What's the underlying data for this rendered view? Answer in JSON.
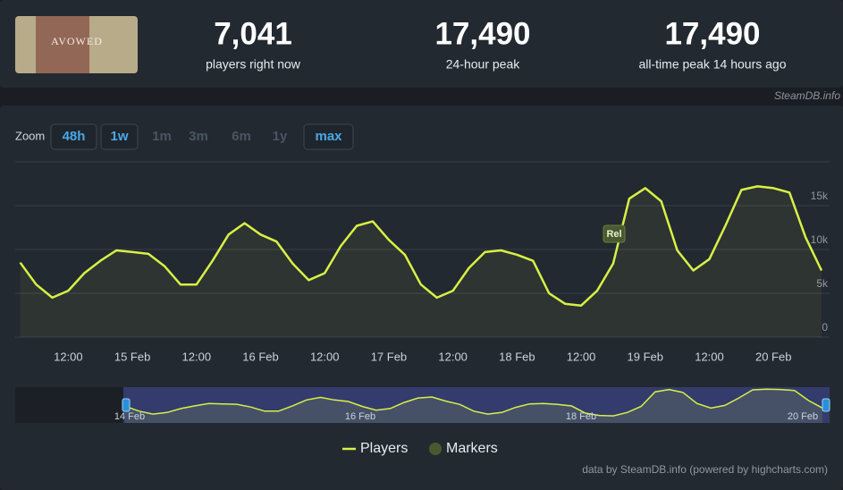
{
  "header": {
    "game_logo": "AVOWED",
    "stats": [
      {
        "value": "7,041",
        "label": "players right now"
      },
      {
        "value": "17,490",
        "label": "24-hour peak"
      },
      {
        "value": "17,490",
        "label": "all-time peak 14 hours ago"
      }
    ],
    "watermark": "SteamDB.info"
  },
  "zoom": {
    "label": "Zoom",
    "buttons": [
      "48h",
      "1w",
      "1m",
      "3m",
      "6m",
      "1y",
      "max"
    ],
    "enabled": [
      true,
      true,
      false,
      false,
      false,
      false,
      true
    ]
  },
  "chart_data": {
    "type": "line",
    "categories": [
      null,
      null,
      null,
      "12:00",
      null,
      null,
      null,
      "15 Feb",
      null,
      null,
      null,
      "12:00",
      null,
      null,
      null,
      "16 Feb",
      null,
      null,
      null,
      "12:00",
      null,
      null,
      null,
      "17 Feb",
      null,
      null,
      null,
      "12:00",
      null,
      null,
      null,
      "18 Feb",
      null,
      null,
      null,
      "12:00",
      null,
      null,
      null,
      "19 Feb",
      null,
      null,
      null,
      "12:00",
      null,
      null,
      null,
      "20 Feb",
      null,
      null,
      null
    ],
    "series": [
      {
        "name": "Players",
        "color": "#d8f046",
        "values": [
          8500,
          6000,
          4500,
          5300,
          7300,
          8700,
          9900,
          9700,
          9500,
          8100,
          6000,
          6000,
          8700,
          11700,
          13000,
          11700,
          10900,
          8400,
          6500,
          7300,
          10400,
          12700,
          13200,
          11100,
          9400,
          6000,
          4500,
          5300,
          7900,
          9700,
          9900,
          9400,
          8700,
          5000,
          3800,
          3600,
          5300,
          8400,
          15800,
          17000,
          15500,
          9900,
          7600,
          8900,
          12700,
          16800,
          17200,
          17000,
          16500,
          11400,
          7600
        ]
      }
    ],
    "markers": {
      "name": "Markers",
      "color": "#4a5a30",
      "label": "Rel"
    },
    "ylim": [
      0,
      20000
    ],
    "yticks": [
      0,
      {
        "value": 5000,
        "label": "5k"
      },
      {
        "value": 10000,
        "label": "10k"
      },
      {
        "value": 15000,
        "label": "15k"
      }
    ],
    "grid": true,
    "navigator_labels": [
      "14 Feb",
      "16 Feb",
      "18 Feb",
      "20 Feb"
    ],
    "credit": "data by SteamDB.info (powered by highcharts.com)"
  }
}
